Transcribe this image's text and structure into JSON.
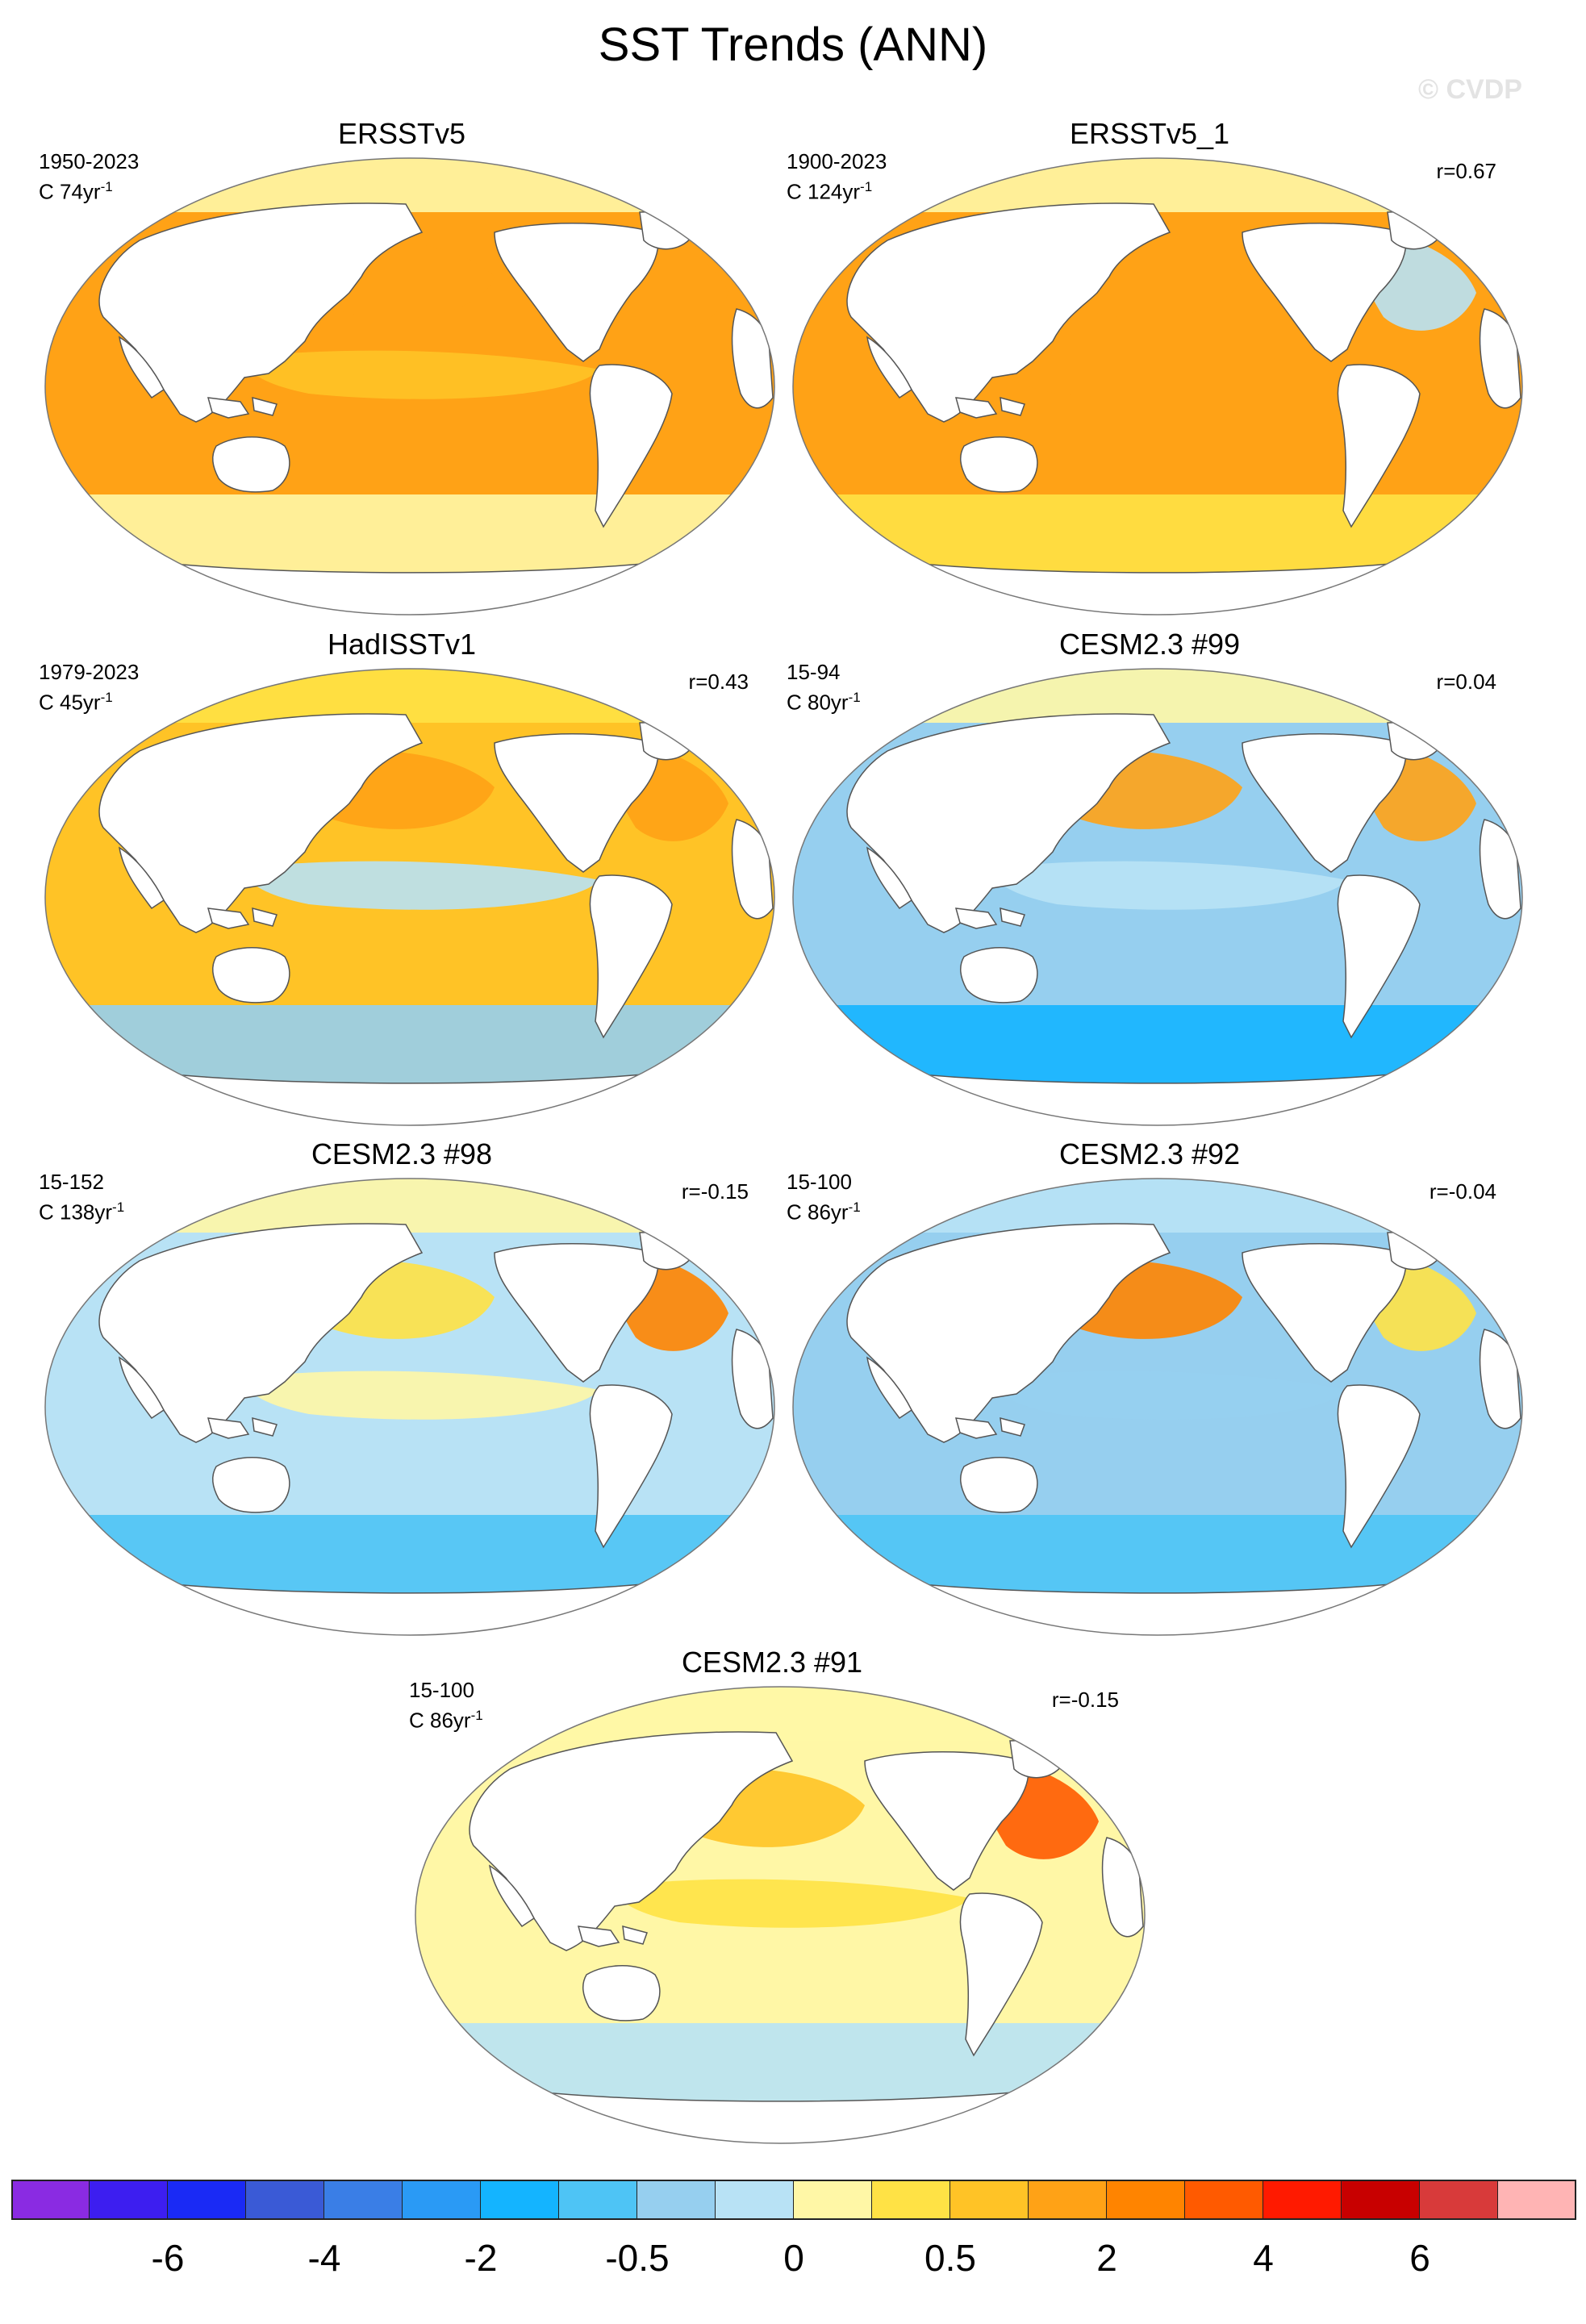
{
  "title": "SST Trends (ANN)",
  "watermark": "© CVDP",
  "colors": {
    "land": "#ffffff",
    "coast": "#555555",
    "levels": [
      "#8a2be2",
      "#3d1ef0",
      "#1a2af5",
      "#3a5ad6",
      "#3a7ee6",
      "#2a9af5",
      "#14b4ff",
      "#4ec4f5",
      "#96cfef",
      "#b8e2f5",
      "#fff7a6",
      "#ffe245",
      "#ffc326",
      "#ffa216",
      "#ff8400",
      "#ff5a00",
      "#ff1a00",
      "#c80000",
      "#d83a3a",
      "#ffb4b4"
    ]
  },
  "panels": [
    {
      "name": "ERSSTv5",
      "period": "1950-2023",
      "units": "C 74yr",
      "units_exp": "-1",
      "corr": "",
      "base": 13,
      "arctic": 10,
      "north_atlantic": 13,
      "north_pacific": 13,
      "tropics": 12,
      "south_ocean": 10
    },
    {
      "name": "ERSSTv5_1",
      "period": "1900-2023",
      "units": "C 124yr",
      "units_exp": "-1",
      "corr": "r=0.67",
      "base": 13,
      "arctic": 10,
      "north_atlantic": 9,
      "north_pacific": 13,
      "tropics": 13,
      "south_ocean": 11
    },
    {
      "name": "HadISSTv1",
      "period": "1979-2023",
      "units": "C 45yr",
      "units_exp": "-1",
      "corr": "r=0.43",
      "base": 12,
      "arctic": 11,
      "north_atlantic": 13,
      "north_pacific": 13,
      "tropics": 9,
      "south_ocean": 8
    },
    {
      "name": "CESM2.3 #99",
      "period": "15-94",
      "units": "C 80yr",
      "units_exp": "-1",
      "corr": "r=0.04",
      "base": 8,
      "arctic": 10,
      "north_atlantic": 13,
      "north_pacific": 13,
      "tropics": 9,
      "south_ocean": 6
    },
    {
      "name": "CESM2.3 #98",
      "period": "15-152",
      "units": "C 138yr",
      "units_exp": "-1",
      "corr": "r=-0.15",
      "base": 9,
      "arctic": 10,
      "north_atlantic": 14,
      "north_pacific": 11,
      "tropics": 10,
      "south_ocean": 7
    },
    {
      "name": "CESM2.3 #92",
      "period": "15-100",
      "units": "C 86yr",
      "units_exp": "-1",
      "corr": "r=-0.04",
      "base": 8,
      "arctic": 9,
      "north_atlantic": 11,
      "north_pacific": 14,
      "tropics": 8,
      "south_ocean": 7
    },
    {
      "name": "CESM2.3 #91",
      "period": "15-100",
      "units": "C 86yr",
      "units_exp": "-1",
      "corr": "r=-0.15",
      "base": 10,
      "arctic": 10,
      "north_atlantic": 15,
      "north_pacific": 12,
      "tropics": 11,
      "south_ocean": 9
    }
  ],
  "colorbar": {
    "labels": [
      "-6",
      "-4",
      "-2",
      "-0.5",
      "0",
      "0.5",
      "2",
      "4",
      "6"
    ],
    "label_boundaries": [
      2,
      4,
      6,
      8,
      10,
      12,
      14,
      16,
      18
    ]
  }
}
